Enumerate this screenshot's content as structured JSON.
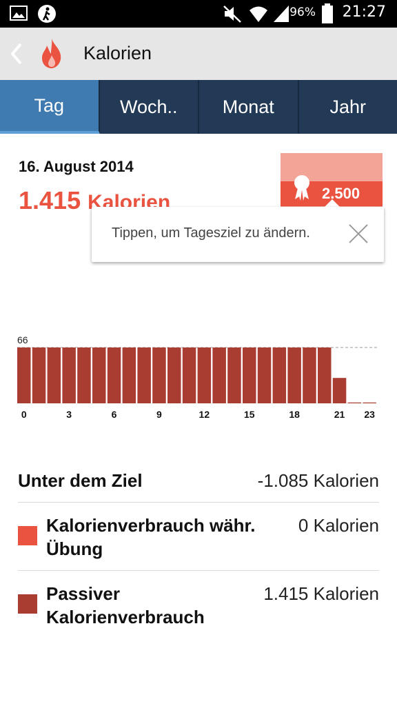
{
  "status_bar": {
    "battery": "96%",
    "time": "21:27",
    "icons": [
      "gallery-icon",
      "walker-icon",
      "mute-icon",
      "wifi-icon",
      "signal-icon",
      "battery-icon"
    ]
  },
  "app_bar": {
    "title": "Kalorien",
    "icons": [
      "back-icon",
      "flame-icon"
    ],
    "accent": "#e9533f"
  },
  "tabs": [
    {
      "label": "Tag",
      "active": true
    },
    {
      "label": "Woch..",
      "active": false
    },
    {
      "label": "Monat",
      "active": false
    },
    {
      "label": "Jahr",
      "active": false
    }
  ],
  "summary": {
    "date": "16. August 2014",
    "total_value": "1.415",
    "total_unit": "Kalorien",
    "goal": "2.500"
  },
  "tooltip": {
    "text": "Tippen, um Tagesziel zu ändern."
  },
  "chart_data": {
    "type": "bar",
    "categories": [
      0,
      1,
      2,
      3,
      4,
      5,
      6,
      7,
      8,
      9,
      10,
      11,
      12,
      13,
      14,
      15,
      16,
      17,
      18,
      19,
      20,
      21,
      22,
      23
    ],
    "values": [
      66,
      66,
      66,
      66,
      66,
      66,
      66,
      66,
      66,
      66,
      66,
      66,
      66,
      66,
      66,
      66,
      66,
      66,
      66,
      66,
      66,
      30,
      1,
      1
    ],
    "tick_labels": [
      "0",
      "3",
      "6",
      "9",
      "12",
      "15",
      "18",
      "21",
      "23"
    ],
    "tick_positions": [
      0,
      3,
      6,
      9,
      12,
      15,
      18,
      21,
      23
    ],
    "max_label": "66",
    "ylim": [
      0,
      66
    ],
    "reference_line": 66,
    "bar_color": "#a93d32"
  },
  "stats": [
    {
      "label": "Unter dem Ziel",
      "value": "-1.085 Kalorien"
    },
    {
      "label_line1": "Kalorienverbrauch währ.",
      "label_line2": "Übung",
      "value": "0 Kalorien",
      "color": "#e9533f"
    },
    {
      "label_line1": "Passiver",
      "label_line2": "Kalorienverbrauch",
      "value": "1.415 Kalorien",
      "color": "#a93d32"
    }
  ]
}
